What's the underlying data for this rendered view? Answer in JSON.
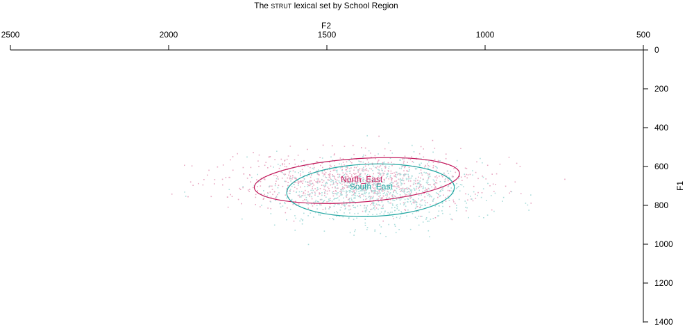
{
  "chart_data": {
    "type": "scatter",
    "title_parts": [
      "The ",
      "STRUT",
      " lexical set by School Region"
    ],
    "xlabel": "F2",
    "ylabel": "F1",
    "xlim": [
      2500,
      500
    ],
    "ylim": [
      0,
      1500
    ],
    "x_ticks": [
      2500,
      2000,
      1500,
      1000,
      500
    ],
    "y_ticks": [
      0,
      200,
      400,
      600,
      800,
      1000,
      1200,
      1400
    ],
    "x_axis_position": "top",
    "y_axis_position": "right",
    "x_reversed": true,
    "y_reversed": true,
    "grid": false,
    "series": [
      {
        "name": "North_East",
        "color": "#C2185B",
        "label_at": {
          "f2": 1390,
          "f1": 680
        },
        "ellipse": {
          "center_f2": 1405,
          "center_f1": 672,
          "radius_f2": 325,
          "radius_f1": 112,
          "angle_deg": -4
        }
      },
      {
        "name": "South_East",
        "color": "#1FA5A0",
        "label_at": {
          "f2": 1360,
          "f1": 718
        },
        "ellipse": {
          "center_f2": 1362,
          "center_f1": 722,
          "radius_f2": 265,
          "radius_f1": 135,
          "angle_deg": -2
        }
      }
    ]
  }
}
